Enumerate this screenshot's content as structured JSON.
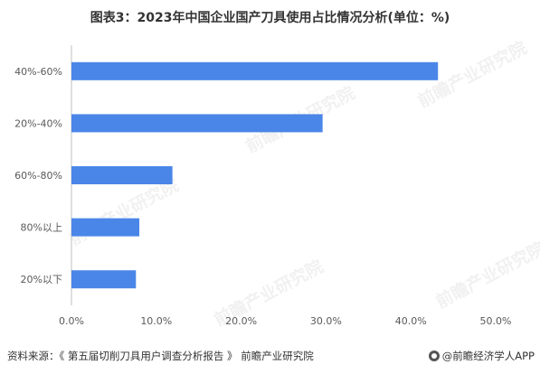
{
  "title": "图表3：2023年中国企业国产刀具使用占比情况分析(单位：%)",
  "source": "资料来源：《 第五届切削刀具用户调查分析报告 》 前瞻产业研究院",
  "brand": "@前瞻经济学人APP",
  "watermark": "前瞻产业研究院",
  "colors": {
    "bar": "#4a86e8",
    "axis": "#bfbfbf",
    "text": "#595959"
  },
  "chart_data": {
    "type": "bar",
    "orientation": "horizontal",
    "categories": [
      "40%-60%",
      "20%-40%",
      "60%-80%",
      "80%以上",
      "20%以下"
    ],
    "values": [
      43.2,
      29.6,
      11.9,
      8.0,
      7.6
    ],
    "xlim": [
      0,
      50
    ],
    "xticks": [
      "0.0%",
      "10.0%",
      "20.0%",
      "30.0%",
      "40.0%",
      "50.0%"
    ],
    "xlabel": "",
    "ylabel": "",
    "grid": false,
    "legend": "none"
  }
}
